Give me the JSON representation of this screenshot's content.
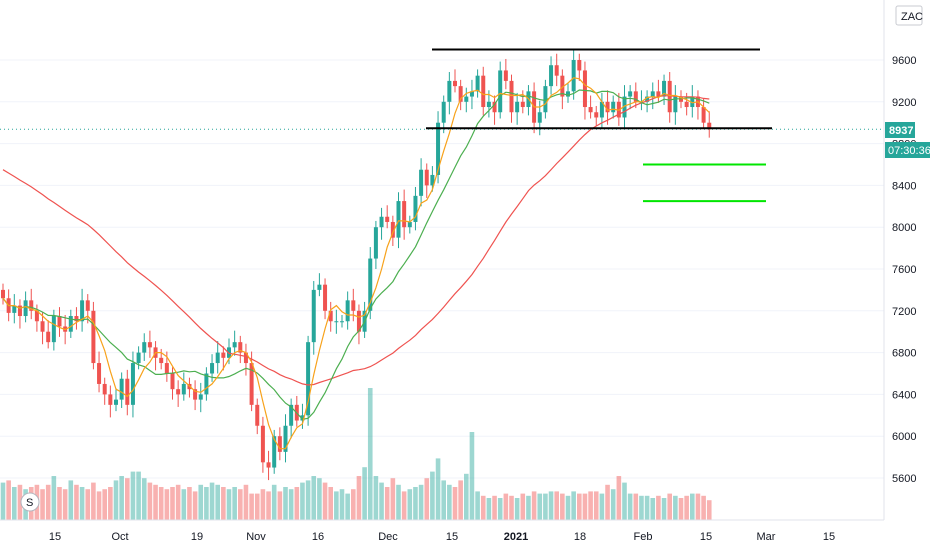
{
  "header": {
    "symbol_badge": "ZAC",
    "volume_badge": "S"
  },
  "price_label": {
    "price": "8937",
    "countdown": "07:30:36"
  },
  "colors": {
    "up": "#26a69a",
    "down": "#ef5350",
    "ma_fast": "#f7a21b",
    "ma_mid": "#4caf50",
    "ma_slow": "#ef5350",
    "level": "#000000",
    "target": "#00e600",
    "price_line": "#26a69a"
  },
  "chart_data": {
    "type": "candlestick",
    "x_tick_labels": [
      "15",
      "Oct",
      "19",
      "Nov",
      "16",
      "Dec",
      "15",
      "2021",
      "18",
      "Feb",
      "15",
      "Mar",
      "15"
    ],
    "y_tick_labels": [
      "5600",
      "6000",
      "6400",
      "6800",
      "7200",
      "7600",
      "8000",
      "8400",
      "8800",
      "9200",
      "9600"
    ],
    "ylim": [
      5200,
      10000
    ],
    "last_price": 8937,
    "close": [
      7320,
      7180,
      7250,
      7150,
      7300,
      7200,
      7100,
      7000,
      6900,
      7150,
      7050,
      7000,
      7150,
      7100,
      7300,
      7200,
      6700,
      6500,
      6400,
      6300,
      6350,
      6550,
      6300,
      6700,
      6800,
      6900,
      6850,
      6750,
      6700,
      6600,
      6450,
      6400,
      6500,
      6450,
      6350,
      6400,
      6600,
      6700,
      6800,
      6750,
      6850,
      6900,
      6800,
      6700,
      6300,
      6100,
      5750,
      5700,
      6000,
      5850,
      6100,
      6300,
      6150,
      6200,
      6900,
      7400,
      7450,
      7200,
      7100,
      7100,
      7100,
      7300,
      7200,
      7000,
      7200,
      7700,
      8000,
      8100,
      8050,
      7900,
      8250,
      8000,
      8050,
      8300,
      8550,
      8400,
      8500,
      9000,
      9200,
      9400,
      9350,
      9200,
      9250,
      9300,
      9450,
      9150,
      9200,
      9100,
      9500,
      9400,
      9100,
      9200,
      9150,
      9300,
      9000,
      9100,
      9350,
      9550,
      9450,
      9250,
      9300,
      9600,
      9500,
      9150,
      9100,
      9050,
      9200,
      9100,
      9200,
      9050,
      9250,
      9300,
      9200,
      9200,
      9250,
      9300,
      9250,
      9400,
      9100,
      9250,
      9200,
      9150,
      9250,
      9150,
      9000,
      8937
    ],
    "volume": [
      1700,
      1800,
      1500,
      1600,
      1400,
      1500,
      1600,
      1400,
      1600,
      2000,
      1500,
      1400,
      1800,
      1600,
      1500,
      1400,
      1700,
      1300,
      1400,
      1500,
      1800,
      2000,
      1900,
      2200,
      2200,
      1900,
      1700,
      1600,
      1500,
      1400,
      1500,
      1600,
      1400,
      1500,
      1300,
      1600,
      1500,
      1700,
      1600,
      1500,
      1400,
      1500,
      1400,
      1600,
      1200,
      1200,
      1400,
      1300,
      1600,
      1300,
      1500,
      1400,
      1500,
      1700,
      1800,
      2000,
      1900,
      1700,
      1500,
      1300,
      1400,
      1200,
      1400,
      2000,
      2400,
      6000,
      2000,
      1700,
      1500,
      1900,
      1600,
      1300,
      1400,
      1500,
      1600,
      1900,
      2200,
      2800,
      1800,
      1600,
      1500,
      1800,
      2100,
      4000,
      1300,
      1100,
      1000,
      1100,
      1000,
      1200,
      1100,
      1000,
      1200,
      1100,
      1300,
      1200,
      1200,
      1300,
      1300,
      1200,
      1100,
      1300,
      1200,
      1200,
      1300,
      1300,
      1200,
      1600,
      1400,
      2000,
      1700,
      1200,
      1200,
      1100,
      1100,
      1000,
      1100,
      1000,
      1200,
      1100,
      1000,
      1100,
      1200,
      1200,
      1100,
      900
    ],
    "ma_fast_last": 9150,
    "ma_mid_last": 9120,
    "ma_slow_last": 9150,
    "ma_slow_start": 8550,
    "resistance": 9700,
    "support": 8937,
    "targets": [
      8600,
      8250
    ]
  }
}
